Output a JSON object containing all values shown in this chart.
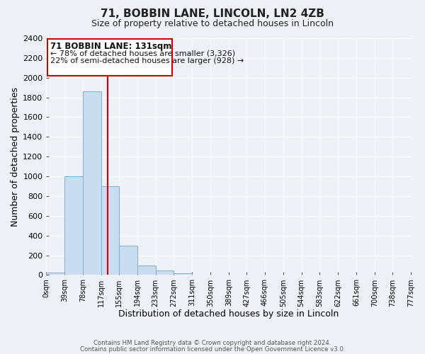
{
  "title": "71, BOBBIN LANE, LINCOLN, LN2 4ZB",
  "subtitle": "Size of property relative to detached houses in Lincoln",
  "xlabel": "Distribution of detached houses by size in Lincoln",
  "ylabel": "Number of detached properties",
  "bin_edges": [
    0,
    39,
    78,
    117,
    155,
    194,
    233,
    272,
    311,
    350,
    389,
    427,
    466,
    505,
    544,
    583,
    622,
    661,
    700,
    738,
    777
  ],
  "bin_labels": [
    "0sqm",
    "39sqm",
    "78sqm",
    "117sqm",
    "155sqm",
    "194sqm",
    "233sqm",
    "272sqm",
    "311sqm",
    "350sqm",
    "389sqm",
    "427sqm",
    "466sqm",
    "505sqm",
    "544sqm",
    "583sqm",
    "622sqm",
    "661sqm",
    "700sqm",
    "738sqm",
    "777sqm"
  ],
  "bar_heights": [
    25,
    1000,
    1860,
    900,
    300,
    100,
    45,
    20,
    0,
    0,
    0,
    0,
    0,
    0,
    0,
    0,
    0,
    0,
    0,
    0
  ],
  "bar_color": "#c9ddf0",
  "bar_edge_color": "#7bafd4",
  "vline_x": 131,
  "vline_color": "#cc0000",
  "ylim": [
    0,
    2400
  ],
  "yticks": [
    0,
    200,
    400,
    600,
    800,
    1000,
    1200,
    1400,
    1600,
    1800,
    2000,
    2200,
    2400
  ],
  "annotation_title": "71 BOBBIN LANE: 131sqm",
  "annotation_line1": "← 78% of detached houses are smaller (3,326)",
  "annotation_line2": "22% of semi-detached houses are larger (928) →",
  "annotation_box_color": "#cc0000",
  "footer1": "Contains HM Land Registry data © Crown copyright and database right 2024.",
  "footer2": "Contains public sector information licensed under the Open Government Licence v3.0.",
  "bg_color": "#eef2f8",
  "plot_bg_color": "#eef2f8",
  "grid_color": "#ffffff"
}
